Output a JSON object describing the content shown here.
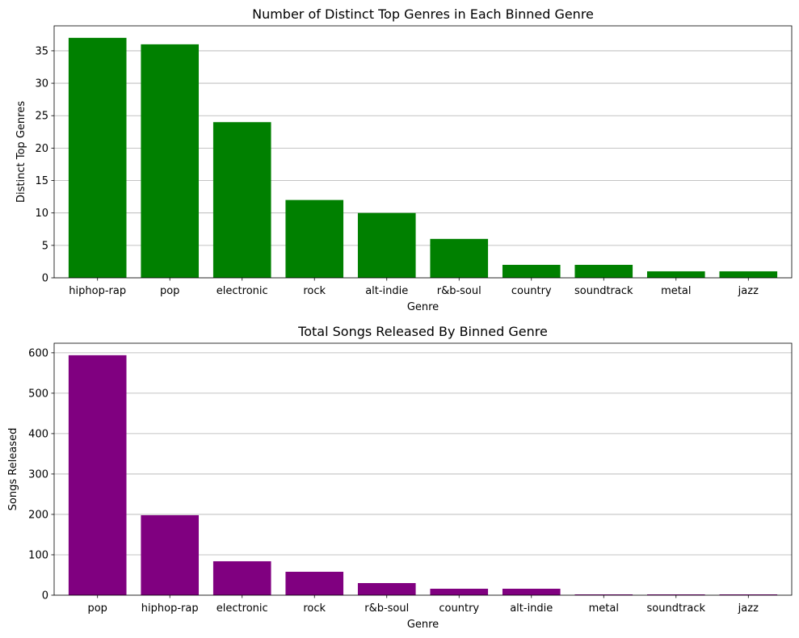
{
  "chart_data": [
    {
      "type": "bar",
      "title": "Number of Distinct Top Genres in Each Binned Genre",
      "xlabel": "Genre",
      "ylabel": "Distinct Top Genres",
      "categories": [
        "hiphop-rap",
        "pop",
        "electronic",
        "rock",
        "alt-indie",
        "r&b-soul",
        "country",
        "soundtrack",
        "metal",
        "jazz"
      ],
      "values": [
        37,
        36,
        24,
        12,
        10,
        6,
        2,
        2,
        1,
        1
      ],
      "ylim": [
        0,
        38.85
      ],
      "yticks": [
        0,
        5,
        10,
        15,
        20,
        25,
        30,
        35
      ],
      "color": "#008000",
      "grid": "y"
    },
    {
      "type": "bar",
      "title": "Total Songs Released By Binned Genre",
      "xlabel": "Genre",
      "ylabel": "Songs Released",
      "categories": [
        "pop",
        "hiphop-rap",
        "electronic",
        "rock",
        "r&b-soul",
        "country",
        "alt-indie",
        "metal",
        "soundtrack",
        "jazz"
      ],
      "values": [
        594,
        198,
        84,
        58,
        30,
        16,
        16,
        2,
        2,
        2
      ],
      "ylim": [
        0,
        623.7
      ],
      "yticks": [
        0,
        100,
        200,
        300,
        400,
        500,
        600
      ],
      "color": "#800080",
      "grid": "y"
    }
  ]
}
